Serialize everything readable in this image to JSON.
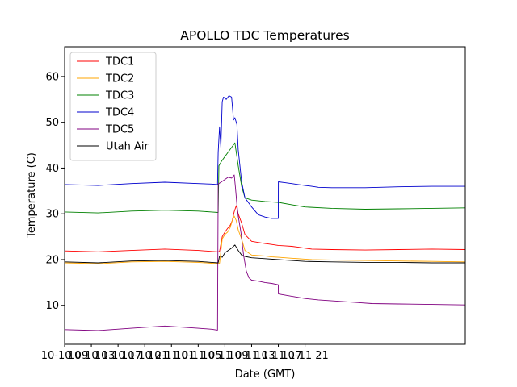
{
  "chart_data": {
    "type": "line",
    "title": "APOLLO TDC Temperatures",
    "xlabel": "Date (GMT)",
    "ylabel": "Temperature (C)",
    "xlim": [
      0,
      60
    ],
    "ylim": [
      1.5,
      66.5
    ],
    "grid": false,
    "legend_position": "top-left",
    "x_ticks": [
      {
        "value": 0,
        "label": "10-10 09"
      },
      {
        "value": 4,
        "label": "10-10 13"
      },
      {
        "value": 8,
        "label": "10-10 17"
      },
      {
        "value": 12,
        "label": "10-10 21"
      },
      {
        "value": 16,
        "label": "10-11 01"
      },
      {
        "value": 20,
        "label": "10-11 05"
      },
      {
        "value": 24,
        "label": "10-11 09"
      },
      {
        "value": 28,
        "label": "10-11 13"
      },
      {
        "value": 32,
        "label": "10-11 17"
      },
      {
        "value": 36,
        "label": "10-11 21"
      }
    ],
    "y_ticks": [
      10,
      20,
      30,
      40,
      50,
      60
    ],
    "series": [
      {
        "name": "TDC1",
        "color": "#ff0000",
        "x": [
          0,
          5,
          10,
          15,
          20,
          22,
          23,
          23.2,
          23.6,
          24.0,
          24.4,
          24.8,
          25.1,
          25.4,
          25.7,
          26.0,
          26.5,
          27,
          28,
          30,
          31,
          32,
          33,
          34,
          35,
          36,
          37,
          40,
          45,
          50,
          55,
          60
        ],
        "values": [
          21.9,
          21.7,
          22.0,
          22.3,
          22.0,
          21.8,
          21.7,
          21.8,
          25.0,
          26.0,
          26.8,
          27.5,
          28.5,
          30.5,
          31.8,
          30.0,
          28.0,
          25.5,
          24.0,
          23.5,
          23.3,
          23.1,
          23.0,
          22.9,
          22.7,
          22.5,
          22.3,
          22.2,
          22.1,
          22.2,
          22.3,
          22.2
        ]
      },
      {
        "name": "TDC2",
        "color": "#ffa500",
        "x": [
          0,
          5,
          10,
          15,
          20,
          22,
          23,
          23.2,
          23.6,
          24.0,
          24.4,
          24.8,
          25.1,
          25.4,
          25.7,
          26.0,
          26.5,
          27,
          28,
          30,
          31,
          32,
          33,
          34,
          35,
          36,
          37,
          40,
          45,
          50,
          55,
          60
        ],
        "values": [
          19.3,
          19.1,
          19.5,
          19.6,
          19.4,
          19.2,
          19.1,
          19.2,
          24.5,
          25.5,
          26.0,
          27.0,
          28.5,
          29.5,
          28.5,
          26.5,
          24.5,
          22.0,
          21.0,
          20.8,
          20.6,
          20.5,
          20.4,
          20.3,
          20.2,
          20.1,
          20.0,
          19.9,
          19.8,
          19.7,
          19.6,
          19.5
        ]
      },
      {
        "name": "TDC3",
        "color": "#008000",
        "x": [
          0,
          5,
          10,
          15,
          20,
          22,
          23,
          23.1,
          23.5,
          24.0,
          24.5,
          25.0,
          25.5,
          26.0,
          26.5,
          27,
          28,
          30,
          32,
          34,
          36,
          40,
          45,
          50,
          55,
          60
        ],
        "values": [
          30.4,
          30.2,
          30.6,
          30.8,
          30.6,
          30.4,
          30.3,
          40.5,
          41.5,
          42.5,
          43.5,
          44.5,
          45.5,
          40.5,
          36.0,
          33.5,
          33.0,
          32.7,
          32.5,
          32.0,
          31.5,
          31.2,
          31.0,
          31.1,
          31.2,
          31.3
        ]
      },
      {
        "name": "TDC4",
        "color": "#0000cd",
        "x": [
          0,
          5,
          10,
          15,
          20,
          22,
          22.9,
          23.0,
          23.2,
          23.4,
          23.6,
          23.8,
          24.2,
          24.6,
          25.0,
          25.3,
          25.5,
          25.8,
          26.0,
          26.5,
          27.0,
          28.0,
          29.0,
          30.0,
          31.0,
          32.0,
          32.01,
          33.0,
          34.0,
          35.0,
          36.0,
          37.0,
          38.0,
          40.0,
          45.0,
          50.0,
          55.0,
          60.0
        ],
        "values": [
          36.4,
          36.2,
          36.6,
          36.9,
          36.6,
          36.5,
          36.4,
          43.5,
          49.0,
          44.5,
          54.5,
          55.5,
          55.0,
          55.8,
          55.5,
          50.5,
          51.0,
          49.5,
          44.0,
          37.0,
          33.5,
          31.5,
          29.8,
          29.3,
          29.0,
          29.0,
          37.0,
          36.8,
          36.6,
          36.4,
          36.2,
          36.0,
          35.8,
          35.7,
          35.7,
          35.9,
          36.0,
          36.0
        ]
      },
      {
        "name": "TDC5",
        "color": "#800080",
        "x": [
          0,
          5,
          10,
          15,
          20,
          22,
          22.9,
          23.0,
          23.5,
          24.0,
          24.5,
          25.0,
          25.4,
          25.6,
          25.8,
          26.0,
          26.4,
          26.8,
          27.2,
          27.6,
          28.0,
          29.0,
          30.0,
          31.0,
          32.0,
          32.01,
          34.0,
          36.0,
          38.0,
          40.0,
          42.0,
          44.0,
          46.0,
          50.0,
          55.0,
          60.0
        ],
        "values": [
          4.7,
          4.5,
          5.0,
          5.5,
          5.0,
          4.8,
          4.6,
          36.5,
          37.0,
          37.5,
          38.0,
          37.8,
          38.5,
          35.5,
          32.0,
          29.5,
          26.0,
          21.0,
          17.5,
          16.0,
          15.5,
          15.3,
          15.0,
          14.8,
          14.5,
          12.5,
          12.0,
          11.5,
          11.2,
          11.0,
          10.8,
          10.6,
          10.4,
          10.3,
          10.2,
          10.1
        ]
      },
      {
        "name": "Utah Air",
        "color": "#000000",
        "x": [
          0,
          5,
          10,
          15,
          20,
          22,
          23,
          23.2,
          23.6,
          24.0,
          24.5,
          25.0,
          25.5,
          26.0,
          26.5,
          27.0,
          28.0,
          30.0,
          32.0,
          34.0,
          36.0,
          40.0,
          45.0,
          50.0,
          55.0,
          60.0
        ],
        "values": [
          19.5,
          19.3,
          19.7,
          19.8,
          19.6,
          19.4,
          19.3,
          20.8,
          20.5,
          21.5,
          22.0,
          22.5,
          23.2,
          22.0,
          21.0,
          20.7,
          20.4,
          20.2,
          20.0,
          19.8,
          19.6,
          19.5,
          19.4,
          19.4,
          19.3,
          19.3
        ]
      }
    ]
  }
}
